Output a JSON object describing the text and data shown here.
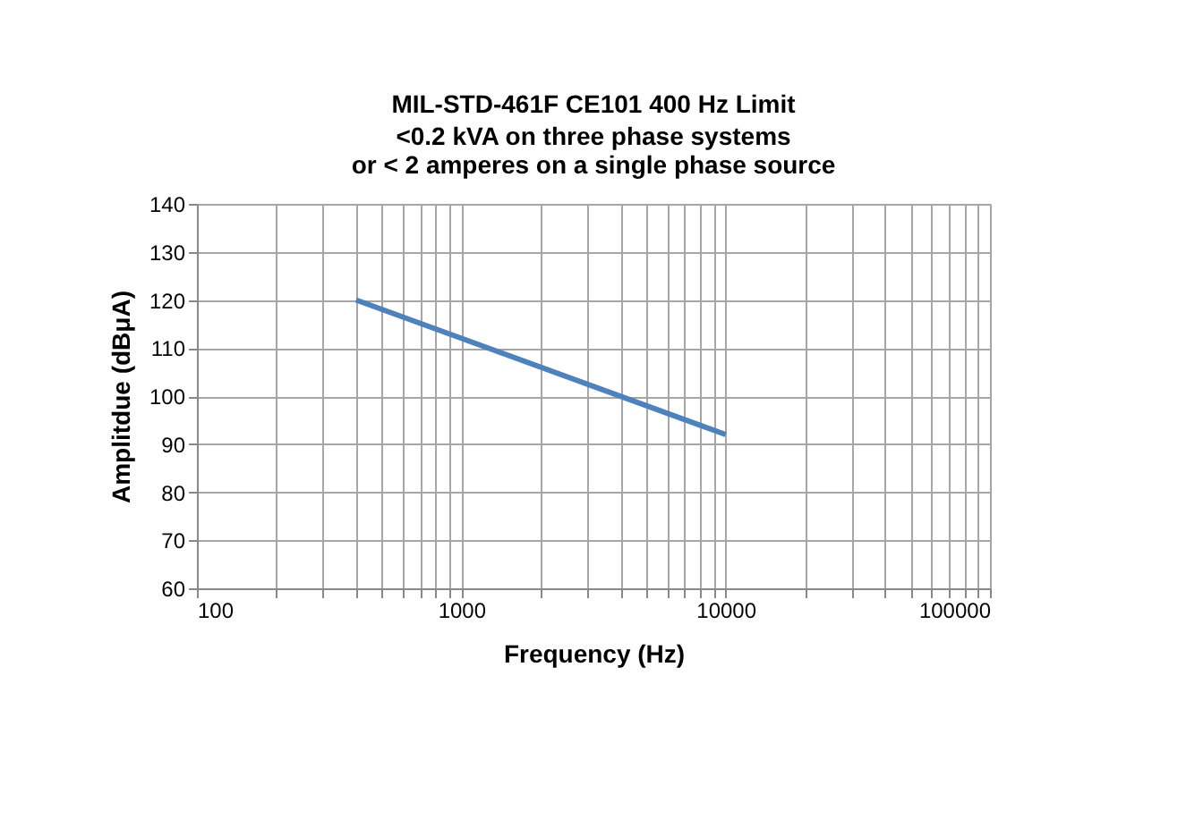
{
  "chart_data": {
    "type": "line",
    "title": "MIL-STD-461F CE101 400  Hz Limit",
    "subtitle": "<0.2 kVA on three phase systems\nor  < 2 amperes  on a single phase source",
    "xlabel": "Frequency (Hz)",
    "ylabel": "Amplitdue (dBμA)",
    "x": [
      400,
      10000
    ],
    "series": [
      {
        "color": "#4f81bd",
        "values": [
          120,
          92
        ]
      }
    ],
    "log": "x",
    "xlim": [
      100,
      100000
    ],
    "ylim": [
      60,
      140
    ],
    "xticks": [
      100,
      {
        "value": 200,
        "label": null
      },
      {
        "value": 300,
        "label": null
      },
      {
        "value": 400,
        "label": null
      },
      {
        "value": 500,
        "label": null
      },
      {
        "value": 600,
        "label": null
      },
      {
        "value": 700,
        "label": null
      },
      {
        "value": 800,
        "label": null
      },
      {
        "value": 900,
        "label": null
      },
      1000,
      {
        "value": 2000,
        "label": null
      },
      {
        "value": 3000,
        "label": null
      },
      {
        "value": 4000,
        "label": null
      },
      {
        "value": 5000,
        "label": null
      },
      {
        "value": 6000,
        "label": null
      },
      {
        "value": 7000,
        "label": null
      },
      {
        "value": 8000,
        "label": null
      },
      {
        "value": 9000,
        "label": null
      },
      10000,
      {
        "value": 20000,
        "label": null
      },
      {
        "value": 30000,
        "label": null
      },
      {
        "value": 40000,
        "label": null
      },
      {
        "value": 50000,
        "label": null
      },
      {
        "value": 60000,
        "label": null
      },
      {
        "value": 70000,
        "label": null
      },
      {
        "value": 80000,
        "label": null
      },
      {
        "value": 90000,
        "label": null
      },
      100000
    ],
    "yticks": [
      60,
      70,
      80,
      90,
      100,
      110,
      120,
      130,
      140
    ],
    "grid": true,
    "legend": false,
    "marker": "none",
    "line_style": "solid"
  }
}
